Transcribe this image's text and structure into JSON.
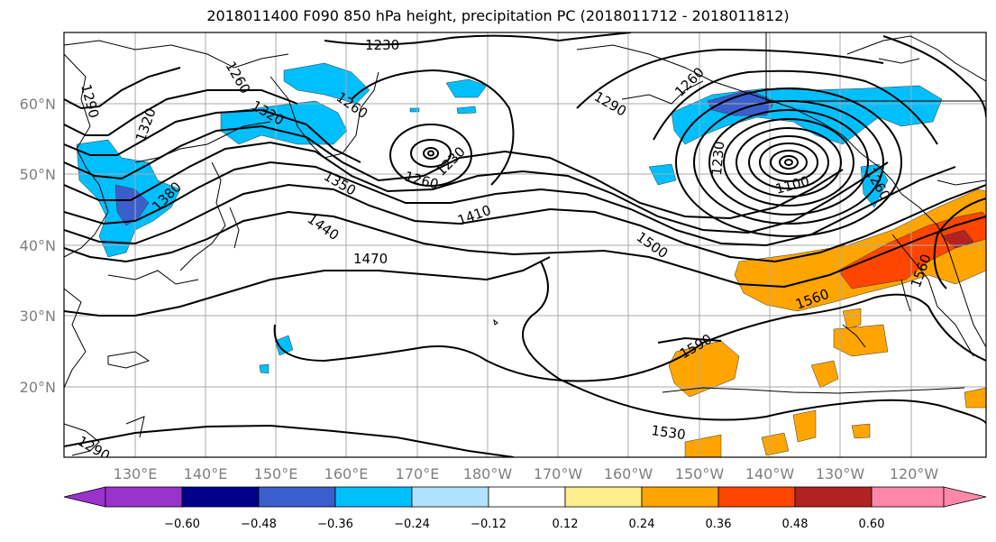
{
  "title": "2018011400 F090 850 hPa height, precipitation PC (2018011712 - 2018011812)",
  "lat_ticks": [
    "60°N",
    "50°N",
    "40°N",
    "30°N",
    "20°N"
  ],
  "lon_ticks": [
    "130°E",
    "140°E",
    "150°E",
    "160°E",
    "170°E",
    "180°W",
    "170°W",
    "160°W",
    "150°W",
    "140°W",
    "130°W",
    "120°W"
  ],
  "colorbar": {
    "colors": [
      "#9933cc",
      "#00008b",
      "#3a5fcd",
      "#00bfff",
      "#b0e2ff",
      "#ffffff",
      "#ffec8b",
      "#ffa500",
      "#ff4500",
      "#b22222",
      "#ff88aa"
    ],
    "ticks": [
      "−0.60",
      "−0.48",
      "−0.36",
      "−0.24",
      "−0.12",
      "0.12",
      "0.24",
      "0.36",
      "0.48",
      "0.60"
    ]
  },
  "contour_labels": [
    "1230",
    "1260",
    "1290",
    "1320",
    "1350",
    "1380",
    "1410",
    "1440",
    "1470",
    "1500",
    "1530",
    "1560",
    "1590",
    "1100",
    "1260",
    "1230",
    "1290",
    "1260",
    "1230",
    "1320",
    "1260",
    "1560",
    "1290",
    "1260"
  ]
}
